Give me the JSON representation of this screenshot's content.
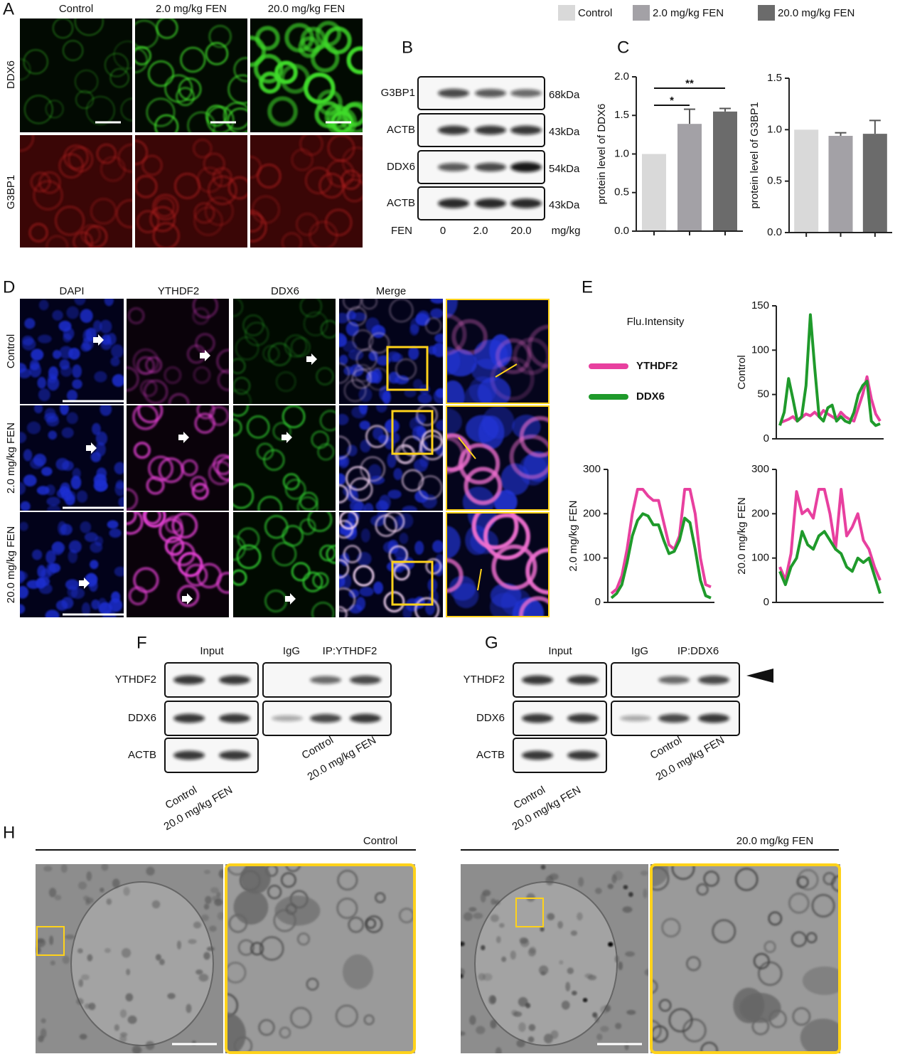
{
  "legend": [
    {
      "name": "Control",
      "color": "#d9d9d9"
    },
    {
      "name": "2.0 mg/kg FEN",
      "color": "#a3a1a6"
    },
    {
      "name": "20.0 mg/kg FEN",
      "color": "#6b6b6b"
    }
  ],
  "panel_a": {
    "label": "A",
    "columns": [
      "Control",
      "2.0 mg/kg FEN",
      "20.0 mg/kg FEN"
    ],
    "rows": [
      "DDX6",
      "G3BP1"
    ]
  },
  "panel_b": {
    "label": "B",
    "rows": [
      {
        "name": "G3BP1",
        "size": "68kDa"
      },
      {
        "name": "ACTB",
        "size": "43kDa"
      },
      {
        "name": "DDX6",
        "size": "54kDa"
      },
      {
        "name": "ACTB",
        "size": "43kDa"
      }
    ],
    "treatment": "FEN",
    "doses": [
      "0",
      "2.0",
      "20.0"
    ],
    "unit": "mg/kg"
  },
  "panel_c": {
    "label": "C"
  },
  "panel_d": {
    "label": "D",
    "columns": [
      "DAPI",
      "YTHDF2",
      "DDX6",
      "Merge"
    ],
    "rows": [
      "Control",
      "2.0 mg/kg FEN",
      "20.0 mg/kg FEN"
    ]
  },
  "panel_e": {
    "label": "E",
    "title": "Flu.Intensity",
    "legend": [
      {
        "name": "YTHDF2",
        "color": "#e8409f"
      },
      {
        "name": "DDX6",
        "color": "#1f9a2b"
      }
    ]
  },
  "panel_f": {
    "label": "F",
    "headers": [
      "Input",
      "IgG",
      "IP:YTHDF2"
    ],
    "rows": [
      "YTHDF2",
      "DDX6",
      "ACTB"
    ],
    "input_lanes": [
      "Control",
      "20.0 mg/kg FEN"
    ],
    "ip_lanes": [
      "Control",
      "20.0 mg/kg FEN"
    ]
  },
  "panel_g": {
    "label": "G",
    "headers": [
      "Input",
      "IgG",
      "IP:DDX6"
    ],
    "rows": [
      "YTHDF2",
      "DDX6",
      "ACTB"
    ],
    "input_lanes": [
      "Control",
      "20.0 mg/kg FEN"
    ],
    "ip_lanes": [
      "Control",
      "20.0 mg/kg FEN"
    ]
  },
  "panel_h": {
    "label": "H",
    "groups": [
      "Control",
      "20.0 mg/kg FEN"
    ]
  },
  "chart_data": [
    {
      "type": "bar",
      "y_label": "protein level of DDX6",
      "categories": [
        null,
        null,
        null
      ],
      "values": [
        1.0,
        1.39,
        1.55
      ],
      "errors": [
        0,
        0.19,
        0.04
      ],
      "colors": [
        "#d9d9d9",
        "#a3a1a6",
        "#6b6b6b"
      ],
      "annotations": [
        "*",
        "**"
      ],
      "ylim": [
        0,
        2.0
      ],
      "yticks": [
        {
          "value": 0,
          "label": "0.0"
        },
        {
          "value": 0.5,
          "label": "0.5"
        },
        {
          "value": 1.0,
          "label": "1.0"
        },
        {
          "value": 1.5,
          "label": "1.5"
        },
        {
          "value": 2.0,
          "label": "2.0"
        }
      ]
    },
    {
      "type": "bar",
      "y_label": "protein level of G3BP1",
      "categories": [
        null,
        null,
        null
      ],
      "values": [
        1.0,
        0.94,
        0.96
      ],
      "errors": [
        0,
        0.03,
        0.13
      ],
      "colors": [
        "#d9d9d9",
        "#a3a1a6",
        "#6b6b6b"
      ],
      "ylim": [
        0,
        1.5
      ],
      "yticks": [
        {
          "value": 0,
          "label": "0.0"
        },
        {
          "value": 0.5,
          "label": "0.5"
        },
        {
          "value": 1.0,
          "label": "1.0"
        },
        {
          "value": 1.5,
          "label": "1.5"
        }
      ]
    },
    {
      "type": "line",
      "y_label": "Control",
      "ylim": [
        0,
        150
      ],
      "yticks": [
        0,
        50,
        100,
        150
      ],
      "series": [
        {
          "color": "#e8409f",
          "values": [
            18,
            20,
            22,
            25,
            20,
            24,
            28,
            26,
            30,
            25,
            32,
            28,
            25,
            22,
            30,
            25,
            22,
            20,
            35,
            50,
            70,
            45,
            28,
            20
          ]
        },
        {
          "color": "#1f9a2b",
          "values": [
            15,
            30,
            68,
            45,
            20,
            25,
            60,
            140,
            80,
            25,
            20,
            35,
            38,
            20,
            25,
            20,
            18,
            30,
            50,
            60,
            65,
            20,
            15,
            17
          ]
        }
      ]
    },
    {
      "type": "line",
      "y_label": "2.0 mg/kg FEN",
      "ylim": [
        0,
        300
      ],
      "yticks": [
        0,
        100,
        200,
        300
      ],
      "series": [
        {
          "color": "#e8409f",
          "values": [
            20,
            30,
            60,
            120,
            200,
            255,
            255,
            240,
            230,
            230,
            180,
            130,
            120,
            150,
            255,
            255,
            200,
            100,
            40,
            35
          ]
        },
        {
          "color": "#1f9a2b",
          "values": [
            10,
            20,
            40,
            90,
            150,
            185,
            200,
            195,
            175,
            175,
            140,
            110,
            115,
            140,
            190,
            180,
            120,
            50,
            15,
            10
          ]
        }
      ]
    },
    {
      "type": "line",
      "y_label": "20.0 mg/kg FEN",
      "ylim": [
        0,
        300
      ],
      "yticks": [
        0,
        100,
        200,
        300
      ],
      "series": [
        {
          "color": "#e8409f",
          "values": [
            80,
            50,
            110,
            250,
            200,
            210,
            190,
            255,
            255,
            200,
            120,
            255,
            150,
            170,
            200,
            140,
            120,
            80,
            50
          ]
        },
        {
          "color": "#1f9a2b",
          "values": [
            70,
            40,
            80,
            100,
            160,
            130,
            120,
            150,
            160,
            140,
            120,
            110,
            80,
            70,
            100,
            90,
            100,
            60,
            20
          ]
        }
      ]
    }
  ]
}
